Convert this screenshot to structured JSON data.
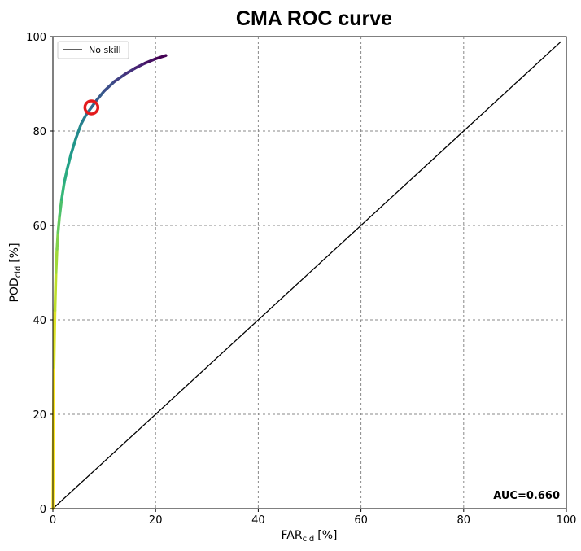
{
  "chart_data": {
    "type": "line",
    "title": "CMA ROC curve",
    "xlabel": {
      "main": "FAR",
      "sub": "cld",
      "unit": "[%]"
    },
    "ylabel": {
      "main": "POD",
      "sub": "cld",
      "unit": "[%]"
    },
    "xlim": [
      0,
      100
    ],
    "ylim": [
      0,
      100
    ],
    "xticks": [
      "0",
      "20",
      "40",
      "60",
      "80",
      "100"
    ],
    "yticks": [
      "0",
      "20",
      "40",
      "60",
      "80",
      "100"
    ],
    "grid": true,
    "legend": {
      "position": "top-left",
      "entries": [
        "No skill"
      ]
    },
    "annotation": "AUC=0.660",
    "series": [
      {
        "name": "ROC",
        "colormap": "viridis",
        "x": [
          0,
          0.2,
          0.4,
          0.6,
          0.8,
          1.0,
          1.3,
          1.7,
          2.2,
          2.8,
          3.5,
          4.5,
          5.5,
          6.5,
          7.5,
          8.5,
          10,
          12,
          14,
          16,
          18,
          20,
          22
        ],
        "y": [
          0,
          30,
          42,
          50,
          55,
          58.5,
          62,
          65.5,
          69,
          72,
          75,
          78.5,
          81.5,
          83.5,
          85,
          86.5,
          88.5,
          90.5,
          92,
          93.3,
          94.4,
          95.3,
          96
        ]
      },
      {
        "name": "No skill",
        "color": "#000000",
        "x": [
          0,
          99
        ],
        "y": [
          0,
          99
        ]
      }
    ],
    "marker": {
      "x": 7.5,
      "y": 85,
      "color": "#e31a1c"
    }
  }
}
